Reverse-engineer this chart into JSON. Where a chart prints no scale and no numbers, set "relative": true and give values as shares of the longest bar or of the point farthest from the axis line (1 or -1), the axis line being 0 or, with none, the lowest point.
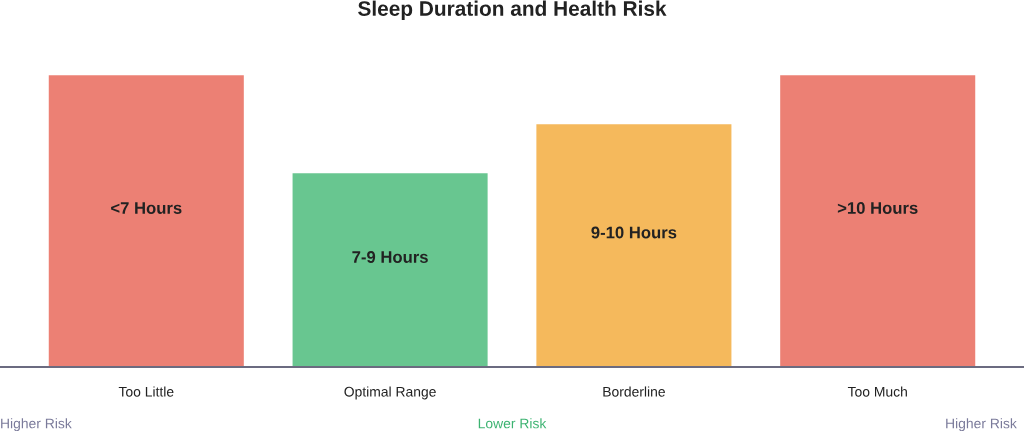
{
  "chart_data": {
    "type": "bar",
    "title": "Sleep Duration and Health Risk",
    "relative": true,
    "categories": [
      "Too Little",
      "Optimal Range",
      "Borderline",
      "Too Much"
    ],
    "values": [
      1,
      0.664,
      0.832,
      1
    ],
    "colors": [
      "#ec8074",
      "#68c690",
      "#f5b95c",
      "#ec8074"
    ],
    "annotations": [
      "<7 Hours",
      "7-9 Hours",
      "9-10 Hours",
      ">10 Hours",
      "Higher Risk",
      "Lower Risk",
      "Higher Risk"
    ],
    "grid": false,
    "legend": false
  }
}
